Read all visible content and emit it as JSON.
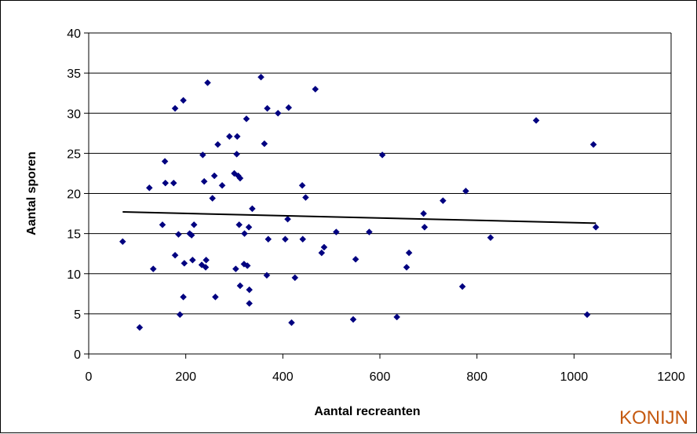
{
  "chart_data": {
    "type": "scatter",
    "title": "",
    "xlabel": "Aantal recreanten",
    "ylabel": "Aantal sporen",
    "xlim": [
      0,
      1200
    ],
    "ylim": [
      0,
      40
    ],
    "x_ticks": [
      0,
      200,
      400,
      600,
      800,
      1000,
      1200
    ],
    "y_ticks": [
      0,
      5,
      10,
      15,
      20,
      25,
      30,
      35,
      40
    ],
    "grid": "horizontal",
    "legend": "none",
    "marker": "diamond",
    "marker_color": "#000080",
    "trendline": {
      "type": "linear",
      "x": [
        70,
        1045
      ],
      "y": [
        17.7,
        16.3
      ],
      "color": "#000000"
    },
    "points": [
      [
        70,
        14.0
      ],
      [
        105,
        3.3
      ],
      [
        125,
        20.7
      ],
      [
        133,
        10.6
      ],
      [
        152,
        16.1
      ],
      [
        157,
        24.0
      ],
      [
        158,
        21.3
      ],
      [
        175,
        21.3
      ],
      [
        178,
        30.6
      ],
      [
        178,
        12.3
      ],
      [
        185,
        14.9
      ],
      [
        188,
        4.9
      ],
      [
        195,
        31.6
      ],
      [
        195,
        7.1
      ],
      [
        197,
        11.3
      ],
      [
        208,
        15.0
      ],
      [
        212,
        14.8
      ],
      [
        214,
        11.7
      ],
      [
        217,
        16.1
      ],
      [
        233,
        11.1
      ],
      [
        235,
        24.8
      ],
      [
        238,
        21.5
      ],
      [
        241,
        10.8
      ],
      [
        242,
        11.7
      ],
      [
        245,
        33.8
      ],
      [
        255,
        19.4
      ],
      [
        259,
        22.2
      ],
      [
        261,
        7.1
      ],
      [
        266,
        26.1
      ],
      [
        275,
        21.0
      ],
      [
        290,
        27.1
      ],
      [
        300,
        22.5
      ],
      [
        303,
        10.6
      ],
      [
        305,
        24.9
      ],
      [
        306,
        27.1
      ],
      [
        308,
        22.2
      ],
      [
        310,
        16.1
      ],
      [
        312,
        21.9
      ],
      [
        312,
        8.5
      ],
      [
        320,
        11.2
      ],
      [
        321,
        15.0
      ],
      [
        325,
        29.3
      ],
      [
        327,
        11.0
      ],
      [
        330,
        15.8
      ],
      [
        331,
        8.0
      ],
      [
        331,
        6.3
      ],
      [
        337,
        18.1
      ],
      [
        355,
        34.5
      ],
      [
        362,
        26.2
      ],
      [
        367,
        9.8
      ],
      [
        368,
        30.6
      ],
      [
        370,
        14.3
      ],
      [
        390,
        30.0
      ],
      [
        405,
        14.3
      ],
      [
        410,
        16.8
      ],
      [
        412,
        30.7
      ],
      [
        418,
        3.9
      ],
      [
        425,
        9.5
      ],
      [
        440,
        21.0
      ],
      [
        441,
        14.3
      ],
      [
        447,
        19.5
      ],
      [
        467,
        33.0
      ],
      [
        480,
        12.6
      ],
      [
        485,
        13.3
      ],
      [
        510,
        15.2
      ],
      [
        545,
        4.3
      ],
      [
        550,
        11.8
      ],
      [
        578,
        15.2
      ],
      [
        605,
        24.8
      ],
      [
        635,
        4.6
      ],
      [
        655,
        10.8
      ],
      [
        660,
        12.6
      ],
      [
        690,
        17.5
      ],
      [
        692,
        15.8
      ],
      [
        730,
        19.1
      ],
      [
        770,
        8.4
      ],
      [
        777,
        20.3
      ],
      [
        828,
        14.5
      ],
      [
        922,
        29.1
      ],
      [
        1027,
        4.9
      ],
      [
        1040,
        26.1
      ],
      [
        1045,
        15.8
      ]
    ]
  },
  "corner_label": "KONIJN"
}
